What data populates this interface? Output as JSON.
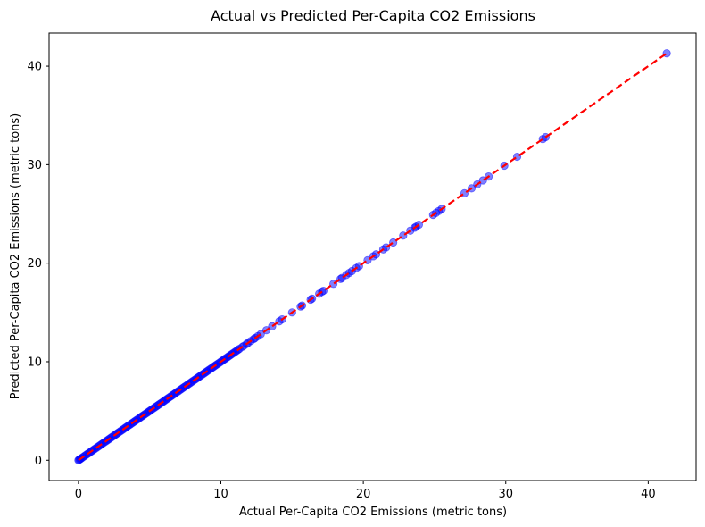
{
  "chart_data": {
    "type": "scatter",
    "title": "Actual vs Predicted Per-Capita CO2 Emissions",
    "xlabel": "Actual Per-Capita CO2 Emissions (metric tons)",
    "ylabel": "Predicted Per-Capita CO2 Emissions (metric tons)",
    "xlim": [
      -2.06,
      43.36
    ],
    "ylim": [
      -2.06,
      43.36
    ],
    "xticks": [
      0,
      10,
      20,
      30,
      40
    ],
    "yticks": [
      0,
      10,
      20,
      30,
      40
    ],
    "grid": false,
    "point_color": "#0000ff",
    "point_alpha": 0.5,
    "reference_line": {
      "from": [
        0,
        0
      ],
      "to": [
        41.3,
        41.3
      ],
      "color": "#ff0000",
      "style": "dashed"
    },
    "points": [
      [
        0,
        0
      ],
      [
        0.05,
        0.05
      ],
      [
        0.1,
        0.1
      ],
      [
        0.15,
        0.15
      ],
      [
        0.2,
        0.2
      ],
      [
        0.3,
        0.3
      ],
      [
        0.4,
        0.4
      ],
      [
        0.5,
        0.5
      ],
      [
        0.6,
        0.6
      ],
      [
        0.7,
        0.7
      ],
      [
        0.8,
        0.8
      ],
      [
        0.9,
        0.9
      ],
      [
        1.0,
        1.0
      ],
      [
        1.1,
        1.1
      ],
      [
        1.2,
        1.2
      ],
      [
        1.3,
        1.3
      ],
      [
        1.4,
        1.4
      ],
      [
        1.5,
        1.5
      ],
      [
        1.6,
        1.6
      ],
      [
        1.7,
        1.7
      ],
      [
        1.8,
        1.8
      ],
      [
        1.9,
        1.9
      ],
      [
        2.0,
        2.0
      ],
      [
        2.1,
        2.1
      ],
      [
        2.2,
        2.2
      ],
      [
        2.3,
        2.3
      ],
      [
        2.4,
        2.4
      ],
      [
        2.5,
        2.5
      ],
      [
        2.6,
        2.6
      ],
      [
        2.7,
        2.7
      ],
      [
        2.8,
        2.8
      ],
      [
        2.9,
        2.9
      ],
      [
        3.0,
        3.0
      ],
      [
        3.1,
        3.1
      ],
      [
        3.2,
        3.2
      ],
      [
        3.3,
        3.3
      ],
      [
        3.4,
        3.4
      ],
      [
        3.5,
        3.5
      ],
      [
        3.6,
        3.6
      ],
      [
        3.7,
        3.7
      ],
      [
        3.8,
        3.8
      ],
      [
        3.9,
        3.9
      ],
      [
        4.0,
        4.0
      ],
      [
        4.1,
        4.1
      ],
      [
        4.2,
        4.2
      ],
      [
        4.3,
        4.3
      ],
      [
        4.4,
        4.4
      ],
      [
        4.5,
        4.5
      ],
      [
        4.6,
        4.6
      ],
      [
        4.7,
        4.7
      ],
      [
        4.8,
        4.8
      ],
      [
        4.9,
        4.9
      ],
      [
        5.0,
        5.0
      ],
      [
        5.1,
        5.1
      ],
      [
        5.2,
        5.2
      ],
      [
        5.3,
        5.3
      ],
      [
        5.4,
        5.4
      ],
      [
        5.5,
        5.5
      ],
      [
        5.6,
        5.6
      ],
      [
        5.7,
        5.7
      ],
      [
        5.8,
        5.8
      ],
      [
        5.9,
        5.9
      ],
      [
        6.0,
        6.0
      ],
      [
        6.1,
        6.1
      ],
      [
        6.2,
        6.2
      ],
      [
        6.3,
        6.3
      ],
      [
        6.4,
        6.4
      ],
      [
        6.5,
        6.5
      ],
      [
        6.6,
        6.6
      ],
      [
        6.7,
        6.7
      ],
      [
        6.8,
        6.8
      ],
      [
        6.9,
        6.9
      ],
      [
        7.0,
        7.0
      ],
      [
        7.1,
        7.1
      ],
      [
        7.2,
        7.2
      ],
      [
        7.3,
        7.3
      ],
      [
        7.4,
        7.4
      ],
      [
        7.5,
        7.5
      ],
      [
        7.6,
        7.6
      ],
      [
        7.7,
        7.7
      ],
      [
        7.8,
        7.8
      ],
      [
        7.9,
        7.9
      ],
      [
        8.0,
        8.0
      ],
      [
        8.1,
        8.1
      ],
      [
        8.2,
        8.2
      ],
      [
        8.3,
        8.3
      ],
      [
        8.4,
        8.4
      ],
      [
        8.5,
        8.5
      ],
      [
        8.6,
        8.6
      ],
      [
        8.7,
        8.7
      ],
      [
        8.8,
        8.8
      ],
      [
        8.9,
        8.9
      ],
      [
        9.0,
        9.0
      ],
      [
        9.1,
        9.1
      ],
      [
        9.2,
        9.2
      ],
      [
        9.3,
        9.3
      ],
      [
        9.4,
        9.4
      ],
      [
        9.5,
        9.5
      ],
      [
        9.6,
        9.6
      ],
      [
        9.7,
        9.7
      ],
      [
        9.8,
        9.8
      ],
      [
        9.9,
        9.9
      ],
      [
        10.0,
        10.0
      ],
      [
        10.1,
        10.1
      ],
      [
        10.2,
        10.2
      ],
      [
        10.3,
        10.3
      ],
      [
        10.4,
        10.4
      ],
      [
        10.5,
        10.5
      ],
      [
        10.6,
        10.6
      ],
      [
        10.7,
        10.7
      ],
      [
        10.8,
        10.8
      ],
      [
        10.9,
        10.9
      ],
      [
        11.0,
        11.0
      ],
      [
        11.1,
        11.1
      ],
      [
        11.2,
        11.2
      ],
      [
        11.3,
        11.3
      ],
      [
        11.5,
        11.5
      ],
      [
        11.6,
        11.6
      ],
      [
        11.8,
        11.8
      ],
      [
        11.9,
        11.9
      ],
      [
        12.1,
        12.1
      ],
      [
        12.3,
        12.3
      ],
      [
        12.4,
        12.4
      ],
      [
        12.6,
        12.6
      ],
      [
        12.8,
        12.8
      ],
      [
        13.2,
        13.2
      ],
      [
        13.6,
        13.6
      ],
      [
        14.1,
        14.1
      ],
      [
        14.3,
        14.3
      ],
      [
        15.0,
        15.0
      ],
      [
        15.6,
        15.6
      ],
      [
        15.7,
        15.7
      ],
      [
        16.3,
        16.3
      ],
      [
        16.4,
        16.4
      ],
      [
        16.9,
        16.9
      ],
      [
        17.1,
        17.1
      ],
      [
        17.2,
        17.2
      ],
      [
        17.9,
        17.9
      ],
      [
        18.4,
        18.4
      ],
      [
        18.5,
        18.5
      ],
      [
        18.8,
        18.8
      ],
      [
        19.0,
        19.0
      ],
      [
        19.2,
        19.2
      ],
      [
        19.5,
        19.5
      ],
      [
        19.7,
        19.7
      ],
      [
        20.3,
        20.3
      ],
      [
        20.7,
        20.7
      ],
      [
        20.9,
        20.9
      ],
      [
        21.4,
        21.4
      ],
      [
        21.6,
        21.6
      ],
      [
        22.1,
        22.1
      ],
      [
        22.8,
        22.8
      ],
      [
        23.3,
        23.3
      ],
      [
        23.6,
        23.6
      ],
      [
        23.7,
        23.7
      ],
      [
        23.9,
        23.9
      ],
      [
        24.9,
        24.9
      ],
      [
        25.1,
        25.1
      ],
      [
        25.3,
        25.3
      ],
      [
        25.5,
        25.5
      ],
      [
        27.1,
        27.1
      ],
      [
        27.6,
        27.6
      ],
      [
        28.0,
        28.0
      ],
      [
        28.4,
        28.4
      ],
      [
        28.8,
        28.8
      ],
      [
        29.9,
        29.9
      ],
      [
        30.8,
        30.8
      ],
      [
        32.6,
        32.6
      ],
      [
        32.8,
        32.8
      ],
      [
        41.3,
        41.3
      ]
    ]
  }
}
